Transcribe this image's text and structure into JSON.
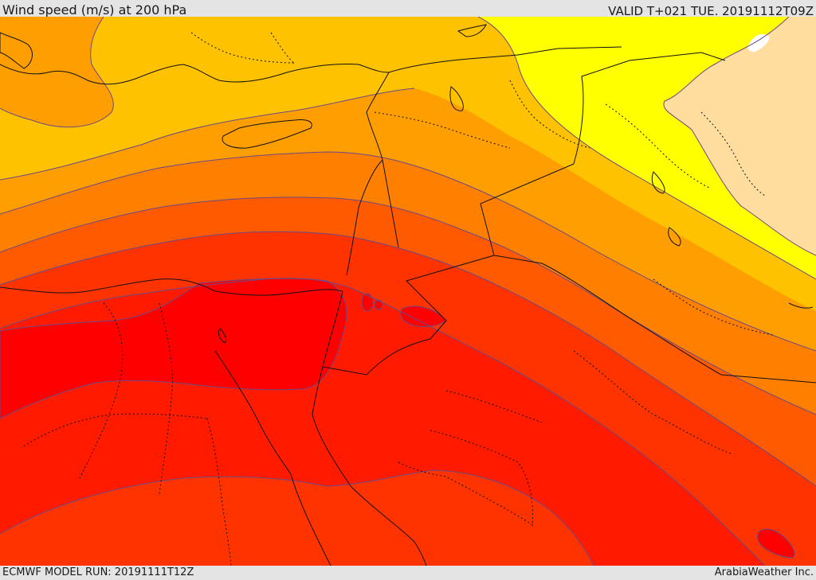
{
  "header": {
    "title": "Wind speed (m/s) at 200 hPa",
    "valid_time": "VALID T+021 TUE. 20191112T09Z"
  },
  "footer": {
    "model_run": "ECMWF MODEL RUN: 20191111T12Z",
    "credit": "ArabiaWeather Inc."
  },
  "map": {
    "variable": "wind speed",
    "level": "200 hPa",
    "units": "m/s",
    "colors": {
      "band_lightest": "#ffdd9f",
      "band_yellow": "#ffff00",
      "band_amber": "#ffc200",
      "band_orange_light": "#ff9e00",
      "band_orange": "#ff7f00",
      "band_orange_red": "#ff5a00",
      "band_red": "#ff3300",
      "band_deep_red": "#ff1a00",
      "band_max": "#ff0000",
      "contour_line": "#6a4a86",
      "border_line": "#111111",
      "water_body": "#ffffff"
    }
  }
}
